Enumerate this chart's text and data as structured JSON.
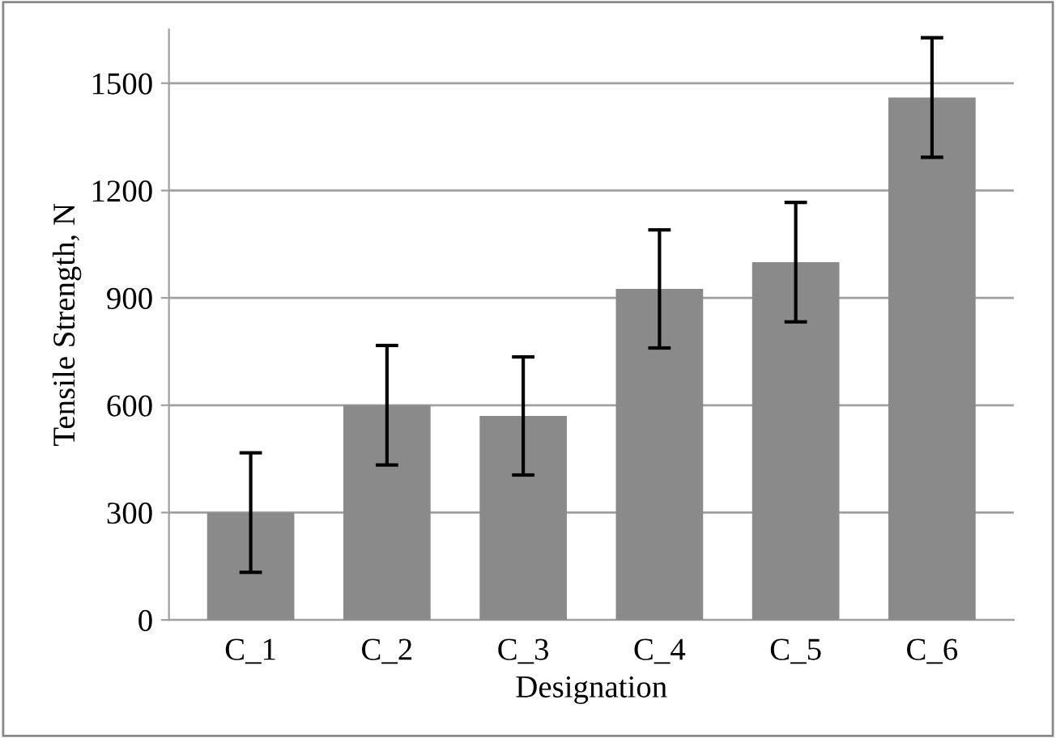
{
  "chart_data": {
    "type": "bar",
    "xlabel": "Designation",
    "ylabel": "Tensile Strength, N",
    "categories": [
      "C_1",
      "C_2",
      "C_3",
      "C_4",
      "C_5",
      "C_6"
    ],
    "values": [
      300,
      600,
      570,
      925,
      1000,
      1460
    ],
    "errors": [
      167,
      167,
      165,
      165,
      167,
      167
    ],
    "color": "#8a8a8a",
    "ylim": [
      0,
      1650
    ],
    "yticks": [
      0,
      300,
      600,
      900,
      1200,
      1500
    ],
    "grid": "y"
  }
}
